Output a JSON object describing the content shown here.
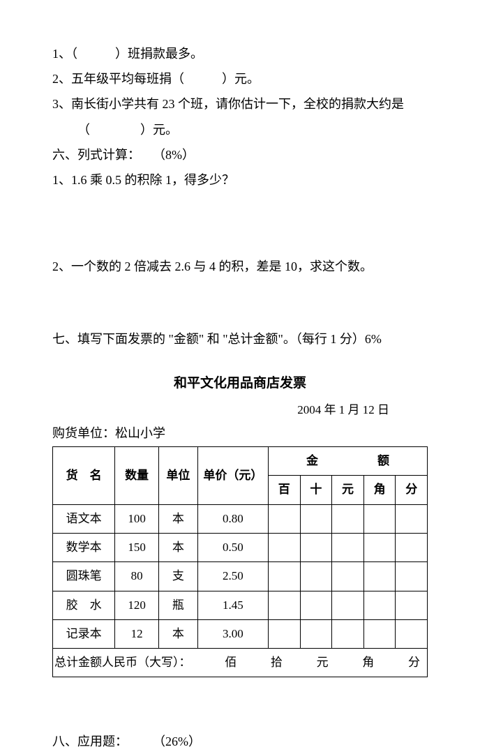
{
  "q1": "1、（　　　）班捐款最多。",
  "q2": "2、五年级平均每班捐（　　　）元。",
  "q3a": "3、南长街小学共有 23 个班，请你估计一下，全校的捐款大约是",
  "q3b": "（　　　　）元。",
  "s6": "六、列式计算：　　（8%）",
  "s6q1": "1、1.6 乘 0.5 的积除 1，得多少？",
  "s6q2": "2、一个数的 2 倍减去 2.6 与 4 的积，差是 10，求这个数。",
  "s7": "七、填写下面发票的 \"金额\" 和 \"总计金额\"。（每行 1 分）6%",
  "invoice": {
    "title": "和平文化用品商店发票",
    "date": "2004 年 1 月 12 日",
    "buyer": "购货单位：松山小学",
    "headers": {
      "name": "货　名",
      "qty": "数量",
      "unit": "单位",
      "price": "单价（元）",
      "amount": "金　　　　　额",
      "bai": "百",
      "shi": "十",
      "yuan": "元",
      "jiao": "角",
      "fen": "分"
    },
    "rows": [
      {
        "name": "语文本",
        "qty": "100",
        "unit": "本",
        "price": "0.80"
      },
      {
        "name": "数学本",
        "qty": "150",
        "unit": "本",
        "price": "0.50"
      },
      {
        "name": "圆珠笔",
        "qty": "80",
        "unit": "支",
        "price": "2.50"
      },
      {
        "name": "胶　水",
        "qty": "120",
        "unit": "瓶",
        "price": "1.45"
      },
      {
        "name": "记录本",
        "qty": "12",
        "unit": "本",
        "price": "3.00"
      }
    ],
    "total_label": "总计金额人民币（大写）：",
    "total_units": [
      "佰",
      "拾",
      "元",
      "角",
      "分"
    ]
  },
  "s8": "八、应用题：　　　（26%）"
}
